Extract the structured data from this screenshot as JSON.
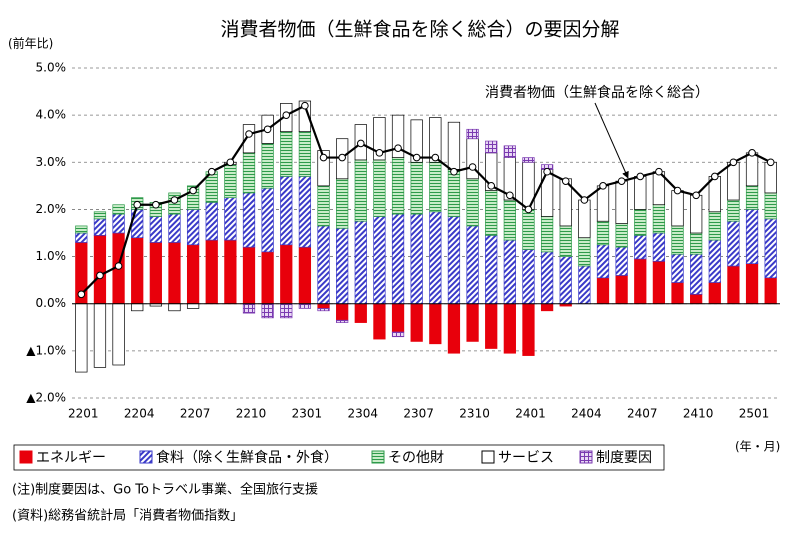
{
  "chart_data": {
    "type": "stacked-bar-line",
    "title": "消費者物価（生鮮食品を除く総合）の要因分解",
    "y_unit_label": "(前年比)",
    "x_unit_label": "(年・月)",
    "notes": [
      "(注)制度要因は、Go Toトラベル事業、全国旅行支援",
      "(資料)総務省統計局「消費者物価指数」"
    ],
    "categories": [
      "2201",
      null,
      null,
      "2204",
      null,
      null,
      "2207",
      null,
      null,
      "2210",
      null,
      null,
      "2301",
      null,
      null,
      "2304",
      null,
      null,
      "2307",
      null,
      null,
      "2310",
      null,
      null,
      "2401",
      null,
      null,
      "2404",
      null,
      null,
      "2407",
      null,
      null,
      "2410",
      null,
      null,
      "2501",
      null
    ],
    "ylim": [
      -2,
      5
    ],
    "yticks": [
      {
        "value": -2,
        "label": "▲2.0%"
      },
      {
        "value": -1,
        "label": "▲1.0%"
      },
      {
        "value": 0,
        "label": "0.0%"
      },
      {
        "value": 1,
        "label": "1.0%"
      },
      {
        "value": 2,
        "label": "2.0%"
      },
      {
        "value": 3,
        "label": "3.0%"
      },
      {
        "value": 4,
        "label": "4.0%"
      },
      {
        "value": 5,
        "label": "5.0%"
      }
    ],
    "grid": true,
    "series": [
      {
        "name": "エネルギー",
        "color": "#e8000b",
        "pattern": "solid",
        "values": [
          1.3,
          1.45,
          1.5,
          1.4,
          1.3,
          1.3,
          1.25,
          1.35,
          1.35,
          1.2,
          1.1,
          1.25,
          1.2,
          -0.1,
          -0.35,
          -0.4,
          -0.75,
          -0.6,
          -0.8,
          -0.85,
          -1.05,
          -0.8,
          -0.95,
          -1.05,
          -1.1,
          -0.15,
          -0.05,
          0,
          0.55,
          0.6,
          0.95,
          0.9,
          0.45,
          0.2,
          0.45,
          0.8,
          0.85,
          0.55
        ]
      },
      {
        "name": "食料（除く生鮮食品・外食）",
        "color": "#3a3ac8",
        "pattern": "diagonal",
        "values": [
          0.2,
          0.35,
          0.4,
          0.6,
          0.55,
          0.6,
          0.75,
          0.8,
          0.9,
          1.15,
          1.35,
          1.45,
          1.5,
          1.65,
          1.6,
          1.75,
          1.85,
          1.9,
          1.9,
          1.95,
          1.85,
          1.65,
          1.45,
          1.35,
          1.15,
          1.1,
          1.0,
          0.8,
          0.7,
          0.6,
          0.5,
          0.6,
          0.6,
          0.85,
          0.9,
          0.95,
          1.15,
          1.25
        ]
      },
      {
        "name": "その他財",
        "color": "#2e9a4a",
        "pattern": "horizontal",
        "values": [
          0.15,
          0.15,
          0.2,
          0.25,
          0.3,
          0.45,
          0.5,
          0.65,
          0.7,
          0.85,
          0.95,
          0.95,
          0.95,
          0.85,
          1.05,
          1.3,
          1.2,
          1.2,
          1.1,
          1.05,
          1.0,
          1.0,
          0.95,
          0.85,
          0.85,
          0.75,
          0.65,
          0.6,
          0.5,
          0.5,
          0.55,
          0.6,
          0.6,
          0.45,
          0.6,
          0.45,
          0.5,
          0.55
        ]
      },
      {
        "name": "サービス",
        "color": "#ffffff",
        "pattern": "solid",
        "values": [
          -1.45,
          -1.35,
          -1.3,
          -0.15,
          -0.05,
          -0.15,
          -0.1,
          0,
          0.05,
          0.6,
          0.6,
          0.6,
          0.65,
          0.75,
          0.85,
          0.75,
          0.9,
          0.9,
          0.9,
          0.95,
          1.0,
          0.85,
          0.8,
          0.9,
          1.0,
          1.0,
          1.0,
          0.8,
          0.75,
          0.9,
          0.7,
          0.7,
          0.75,
          0.8,
          0.75,
          0.8,
          0.7,
          0.65
        ]
      },
      {
        "name": "制度要因",
        "color": "#7a3ab0",
        "pattern": "grid",
        "values": [
          0,
          0,
          0,
          0,
          0,
          0,
          0,
          0,
          0,
          -0.2,
          -0.3,
          -0.3,
          -0.1,
          -0.05,
          -0.05,
          0,
          0,
          -0.1,
          0,
          0,
          0,
          0.2,
          0.25,
          0.25,
          0.1,
          0.1,
          0,
          0,
          0,
          0,
          0,
          0,
          0,
          0,
          0,
          0,
          0,
          0
        ]
      }
    ],
    "line": {
      "name": "消費者物価（生鮮食品を除く総合）",
      "color": "#000000",
      "values": [
        0.2,
        0.6,
        0.8,
        2.1,
        2.1,
        2.2,
        2.4,
        2.8,
        3.0,
        3.6,
        3.7,
        4.0,
        4.2,
        3.1,
        3.1,
        3.4,
        3.2,
        3.3,
        3.1,
        3.1,
        2.8,
        2.9,
        2.5,
        2.3,
        2.0,
        2.8,
        2.6,
        2.2,
        2.5,
        2.6,
        2.7,
        2.8,
        2.4,
        2.3,
        2.7,
        3.0,
        3.2,
        3.0
      ]
    }
  }
}
